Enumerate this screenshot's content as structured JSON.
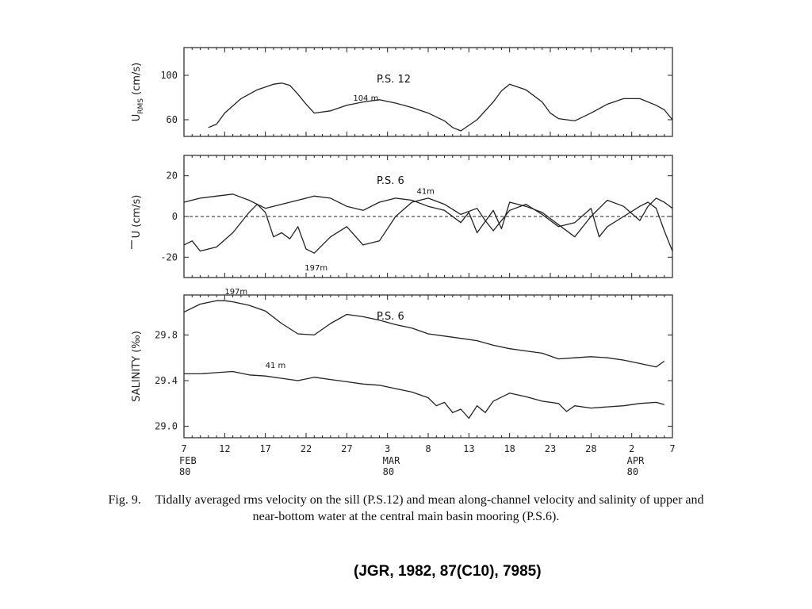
{
  "caption": {
    "label": "Fig. 9.",
    "line1": "Tidally averaged rms velocity on the sill (P.S.12) and mean along-channel velocity and salinity of upper and",
    "line2": "near-bottom water at the central main basin mooring (P.S.6)."
  },
  "citation": "(JGR, 1982, 87(C10), 7985)",
  "chart_data": [
    {
      "type": "line",
      "title": "P.S. 12",
      "ylabel": "U_RMS (cm/s)",
      "ylabel_main": "U",
      "ylabel_sub": "RMS",
      "ylabel_unit": "(cm/s)",
      "xlim": [
        0,
        60
      ],
      "ylim": [
        45,
        125
      ],
      "yticks": [
        {
          "value": 100,
          "label": "100"
        },
        {
          "value": 60,
          "label": "60"
        }
      ],
      "series": [
        {
          "name": "104 m",
          "x": [
            3,
            4,
            5,
            7,
            9,
            11,
            12,
            13,
            14,
            15,
            16,
            18,
            20,
            22,
            24,
            26,
            28,
            30,
            32,
            33,
            34,
            36,
            38,
            39,
            40,
            42,
            44,
            45,
            46,
            48,
            50,
            52,
            54,
            56,
            58,
            59,
            60
          ],
          "y": [
            53,
            56,
            66,
            79,
            87,
            92,
            93,
            91,
            83,
            74,
            66,
            68,
            73,
            76,
            78,
            75,
            71,
            66,
            59,
            53,
            50,
            60,
            76,
            86,
            92,
            87,
            76,
            66,
            61,
            59,
            66,
            74,
            79,
            79,
            73,
            69,
            60
          ]
        }
      ]
    },
    {
      "type": "line",
      "title": "P.S. 6",
      "ylabel": "Ū (cm/s)",
      "ylabel_main": "U",
      "ylabel_unit": "(cm/s)",
      "xlim": [
        0,
        60
      ],
      "ylim": [
        -30,
        30
      ],
      "yticks": [
        {
          "value": 20,
          "label": "20"
        },
        {
          "value": 0,
          "label": "0"
        },
        {
          "value": -20,
          "label": "-20"
        }
      ],
      "zero_line": true,
      "series": [
        {
          "name": "41m",
          "x": [
            0,
            2,
            4,
            6,
            8,
            10,
            12,
            14,
            16,
            18,
            20,
            22,
            24,
            26,
            28,
            30,
            32,
            34,
            35,
            36,
            38,
            39,
            40,
            42,
            44,
            46,
            48,
            50,
            52,
            54,
            56,
            57,
            58,
            59,
            60
          ],
          "y": [
            7,
            9,
            10,
            11,
            8,
            4,
            6,
            8,
            10,
            9,
            5,
            3,
            7,
            9,
            8,
            5,
            3,
            -3,
            2,
            -8,
            3,
            -6,
            7,
            5,
            2,
            -4,
            -10,
            0,
            8,
            5,
            -2,
            5,
            9,
            7,
            4
          ]
        },
        {
          "name": "197m",
          "x": [
            0,
            1,
            2,
            4,
            6,
            8,
            9,
            10,
            11,
            12,
            13,
            14,
            15,
            16,
            18,
            20,
            22,
            24,
            26,
            28,
            30,
            32,
            34,
            36,
            37,
            38,
            40,
            42,
            44,
            46,
            48,
            50,
            51,
            52,
            54,
            56,
            57,
            58,
            59,
            60
          ],
          "y": [
            -14,
            -12,
            -17,
            -15,
            -8,
            2,
            6,
            2,
            -10,
            -8,
            -11,
            -5,
            -16,
            -18,
            -10,
            -5,
            -14,
            -12,
            0,
            7,
            9,
            6,
            1,
            4,
            -2,
            -7,
            3,
            6,
            1,
            -5,
            -3,
            4,
            -10,
            -5,
            0,
            5,
            7,
            4,
            -7,
            -17
          ]
        }
      ]
    },
    {
      "type": "line",
      "title": "P.S. 6",
      "ylabel": "SALINITY (‰)",
      "ylabel_main": "SALINITY",
      "ylabel_unit": "(‰)",
      "xlim": [
        0,
        60
      ],
      "ylim": [
        28.9,
        30.15
      ],
      "yticks": [
        {
          "value": 29.8,
          "label": "29.8"
        },
        {
          "value": 29.4,
          "label": "29.4"
        },
        {
          "value": 29.0,
          "label": "29.0"
        }
      ],
      "x_ticks": [
        {
          "value": 0,
          "label": "7",
          "month": "FEB",
          "year": "80"
        },
        {
          "value": 5,
          "label": "12"
        },
        {
          "value": 10,
          "label": "17"
        },
        {
          "value": 15,
          "label": "22"
        },
        {
          "value": 20,
          "label": "27"
        },
        {
          "value": 25,
          "label": "3",
          "month": "MAR",
          "year": "80"
        },
        {
          "value": 30,
          "label": "8"
        },
        {
          "value": 35,
          "label": "13"
        },
        {
          "value": 40,
          "label": "18"
        },
        {
          "value": 45,
          "label": "23"
        },
        {
          "value": 50,
          "label": "28"
        },
        {
          "value": 55,
          "label": "2",
          "month": "APR",
          "year": "80"
        },
        {
          "value": 60,
          "label": "7"
        }
      ],
      "series": [
        {
          "name": "197m",
          "x": [
            0,
            2,
            4,
            5,
            6,
            8,
            10,
            12,
            14,
            16,
            18,
            20,
            22,
            24,
            26,
            28,
            30,
            32,
            34,
            36,
            38,
            40,
            42,
            44,
            46,
            48,
            50,
            52,
            54,
            56,
            58,
            59
          ],
          "y": [
            30.0,
            30.07,
            30.1,
            30.1,
            30.09,
            30.06,
            30.01,
            29.9,
            29.81,
            29.8,
            29.9,
            29.98,
            29.96,
            29.93,
            29.89,
            29.86,
            29.81,
            29.79,
            29.77,
            29.75,
            29.71,
            29.68,
            29.66,
            29.64,
            29.59,
            29.6,
            29.61,
            29.6,
            29.58,
            29.55,
            29.52,
            29.57
          ]
        },
        {
          "name": "41 m",
          "x": [
            0,
            2,
            4,
            6,
            8,
            10,
            12,
            14,
            16,
            18,
            20,
            22,
            24,
            26,
            28,
            30,
            31,
            32,
            33,
            34,
            35,
            36,
            37,
            38,
            40,
            42,
            44,
            46,
            47,
            48,
            50,
            52,
            54,
            56,
            58,
            59
          ],
          "y": [
            29.46,
            29.46,
            29.47,
            29.48,
            29.45,
            29.44,
            29.42,
            29.4,
            29.43,
            29.41,
            29.39,
            29.37,
            29.36,
            29.33,
            29.3,
            29.25,
            29.18,
            29.21,
            29.12,
            29.15,
            29.07,
            29.18,
            29.12,
            29.22,
            29.29,
            29.26,
            29.22,
            29.2,
            29.13,
            29.18,
            29.16,
            29.17,
            29.18,
            29.2,
            29.21,
            29.19
          ]
        }
      ]
    }
  ]
}
